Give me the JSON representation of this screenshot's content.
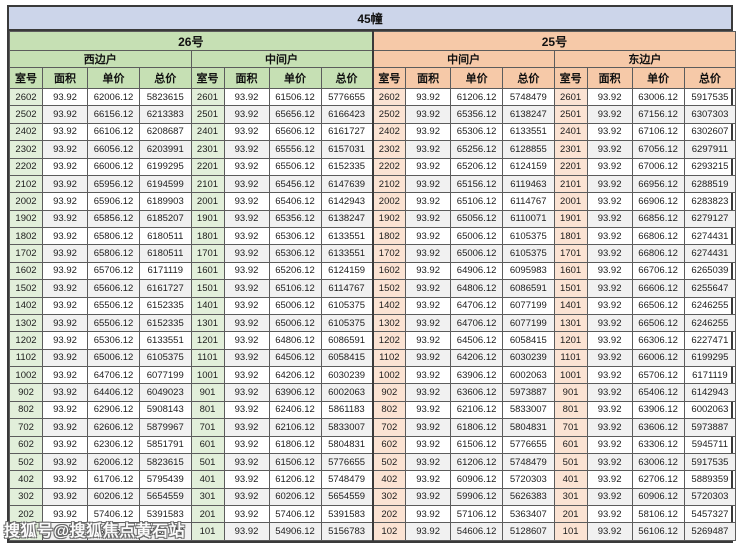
{
  "title": "45幢",
  "watermark": "搜狐号@搜狐焦点黄石站",
  "colors": {
    "title_bar": "#ccd5ea",
    "green_header": "#c6e0b4",
    "green_room_cell": "#e2efda",
    "orange_header": "#f6c9a8",
    "orange_room_cell": "#fbe3d3",
    "row_stripe": "#f1f1f1",
    "border": "#3a3a3a"
  },
  "table": {
    "buildings": [
      {
        "label": "26号",
        "theme": "green",
        "units": [
          "西边户",
          "中间户"
        ]
      },
      {
        "label": "25号",
        "theme": "orange",
        "units": [
          "中间户",
          "东边户"
        ]
      }
    ],
    "column_headers": [
      "室号",
      "面积",
      "单价",
      "总价"
    ],
    "rows": [
      [
        [
          "2602",
          "93.92",
          "62006.12",
          "5823615"
        ],
        [
          "2601",
          "93.92",
          "61506.12",
          "5776655"
        ],
        [
          "2602",
          "93.92",
          "61206.12",
          "5748479"
        ],
        [
          "2601",
          "93.92",
          "63006.12",
          "5917535"
        ]
      ],
      [
        [
          "2502",
          "93.92",
          "66156.12",
          "6213383"
        ],
        [
          "2501",
          "93.92",
          "65656.12",
          "6166423"
        ],
        [
          "2502",
          "93.92",
          "65356.12",
          "6138247"
        ],
        [
          "2501",
          "93.92",
          "67156.12",
          "6307303"
        ]
      ],
      [
        [
          "2402",
          "93.92",
          "66106.12",
          "6208687"
        ],
        [
          "2401",
          "93.92",
          "65606.12",
          "6161727"
        ],
        [
          "2402",
          "93.92",
          "65306.12",
          "6133551"
        ],
        [
          "2401",
          "93.92",
          "67106.12",
          "6302607"
        ]
      ],
      [
        [
          "2302",
          "93.92",
          "66056.12",
          "6203991"
        ],
        [
          "2301",
          "93.92",
          "65556.12",
          "6157031"
        ],
        [
          "2302",
          "93.92",
          "65256.12",
          "6128855"
        ],
        [
          "2301",
          "93.92",
          "67056.12",
          "6297911"
        ]
      ],
      [
        [
          "2202",
          "93.92",
          "66006.12",
          "6199295"
        ],
        [
          "2201",
          "93.92",
          "65506.12",
          "6152335"
        ],
        [
          "2202",
          "93.92",
          "65206.12",
          "6124159"
        ],
        [
          "2201",
          "93.92",
          "67006.12",
          "6293215"
        ]
      ],
      [
        [
          "2102",
          "93.92",
          "65956.12",
          "6194599"
        ],
        [
          "2101",
          "93.92",
          "65456.12",
          "6147639"
        ],
        [
          "2102",
          "93.92",
          "65156.12",
          "6119463"
        ],
        [
          "2101",
          "93.92",
          "66956.12",
          "6288519"
        ]
      ],
      [
        [
          "2002",
          "93.92",
          "65906.12",
          "6189903"
        ],
        [
          "2001",
          "93.92",
          "65406.12",
          "6142943"
        ],
        [
          "2002",
          "93.92",
          "65106.12",
          "6114767"
        ],
        [
          "2001",
          "93.92",
          "66906.12",
          "6283823"
        ]
      ],
      [
        [
          "1902",
          "93.92",
          "65856.12",
          "6185207"
        ],
        [
          "1901",
          "93.92",
          "65356.12",
          "6138247"
        ],
        [
          "1902",
          "93.92",
          "65056.12",
          "6110071"
        ],
        [
          "1901",
          "93.92",
          "66856.12",
          "6279127"
        ]
      ],
      [
        [
          "1802",
          "93.92",
          "65806.12",
          "6180511"
        ],
        [
          "1801",
          "93.92",
          "65306.12",
          "6133551"
        ],
        [
          "1802",
          "93.92",
          "65006.12",
          "6105375"
        ],
        [
          "1801",
          "93.92",
          "66806.12",
          "6274431"
        ]
      ],
      [
        [
          "1702",
          "93.92",
          "65806.12",
          "6180511"
        ],
        [
          "1701",
          "93.92",
          "65306.12",
          "6133551"
        ],
        [
          "1702",
          "93.92",
          "65006.12",
          "6105375"
        ],
        [
          "1701",
          "93.92",
          "66806.12",
          "6274431"
        ]
      ],
      [
        [
          "1602",
          "93.92",
          "65706.12",
          "6171119"
        ],
        [
          "1601",
          "93.92",
          "65206.12",
          "6124159"
        ],
        [
          "1602",
          "93.92",
          "64906.12",
          "6095983"
        ],
        [
          "1601",
          "93.92",
          "66706.12",
          "6265039"
        ]
      ],
      [
        [
          "1502",
          "93.92",
          "65606.12",
          "6161727"
        ],
        [
          "1501",
          "93.92",
          "65106.12",
          "6114767"
        ],
        [
          "1502",
          "93.92",
          "64806.12",
          "6086591"
        ],
        [
          "1501",
          "93.92",
          "66606.12",
          "6255647"
        ]
      ],
      [
        [
          "1402",
          "93.92",
          "65506.12",
          "6152335"
        ],
        [
          "1401",
          "93.92",
          "65006.12",
          "6105375"
        ],
        [
          "1402",
          "93.92",
          "64706.12",
          "6077199"
        ],
        [
          "1401",
          "93.92",
          "66506.12",
          "6246255"
        ]
      ],
      [
        [
          "1302",
          "93.92",
          "65506.12",
          "6152335"
        ],
        [
          "1301",
          "93.92",
          "65006.12",
          "6105375"
        ],
        [
          "1302",
          "93.92",
          "64706.12",
          "6077199"
        ],
        [
          "1301",
          "93.92",
          "66506.12",
          "6246255"
        ]
      ],
      [
        [
          "1202",
          "93.92",
          "65306.12",
          "6133551"
        ],
        [
          "1201",
          "93.92",
          "64806.12",
          "6086591"
        ],
        [
          "1202",
          "93.92",
          "64506.12",
          "6058415"
        ],
        [
          "1201",
          "93.92",
          "66306.12",
          "6227471"
        ]
      ],
      [
        [
          "1102",
          "93.92",
          "65006.12",
          "6105375"
        ],
        [
          "1101",
          "93.92",
          "64506.12",
          "6058415"
        ],
        [
          "1102",
          "93.92",
          "64206.12",
          "6030239"
        ],
        [
          "1101",
          "93.92",
          "66006.12",
          "6199295"
        ]
      ],
      [
        [
          "1002",
          "93.92",
          "64706.12",
          "6077199"
        ],
        [
          "1001",
          "93.92",
          "64206.12",
          "6030239"
        ],
        [
          "1002",
          "93.92",
          "63906.12",
          "6002063"
        ],
        [
          "1001",
          "93.92",
          "65706.12",
          "6171119"
        ]
      ],
      [
        [
          "902",
          "93.92",
          "64406.12",
          "6049023"
        ],
        [
          "901",
          "93.92",
          "63906.12",
          "6002063"
        ],
        [
          "902",
          "93.92",
          "63606.12",
          "5973887"
        ],
        [
          "901",
          "93.92",
          "65406.12",
          "6142943"
        ]
      ],
      [
        [
          "802",
          "93.92",
          "62906.12",
          "5908143"
        ],
        [
          "801",
          "93.92",
          "62406.12",
          "5861183"
        ],
        [
          "802",
          "93.92",
          "62106.12",
          "5833007"
        ],
        [
          "801",
          "93.92",
          "63906.12",
          "6002063"
        ]
      ],
      [
        [
          "702",
          "93.92",
          "62606.12",
          "5879967"
        ],
        [
          "701",
          "93.92",
          "62106.12",
          "5833007"
        ],
        [
          "702",
          "93.92",
          "61806.12",
          "5804831"
        ],
        [
          "701",
          "93.92",
          "63606.12",
          "5973887"
        ]
      ],
      [
        [
          "602",
          "93.92",
          "62306.12",
          "5851791"
        ],
        [
          "601",
          "93.92",
          "61806.12",
          "5804831"
        ],
        [
          "602",
          "93.92",
          "61506.12",
          "5776655"
        ],
        [
          "601",
          "93.92",
          "63306.12",
          "5945711"
        ]
      ],
      [
        [
          "502",
          "93.92",
          "62006.12",
          "5823615"
        ],
        [
          "501",
          "93.92",
          "61506.12",
          "5776655"
        ],
        [
          "502",
          "93.92",
          "61206.12",
          "5748479"
        ],
        [
          "501",
          "93.92",
          "63006.12",
          "5917535"
        ]
      ],
      [
        [
          "402",
          "93.92",
          "61706.12",
          "5795439"
        ],
        [
          "401",
          "93.92",
          "61206.12",
          "5748479"
        ],
        [
          "402",
          "93.92",
          "60906.12",
          "5720303"
        ],
        [
          "401",
          "93.92",
          "62706.12",
          "5889359"
        ]
      ],
      [
        [
          "302",
          "93.92",
          "60206.12",
          "5654559"
        ],
        [
          "301",
          "93.92",
          "60206.12",
          "5654559"
        ],
        [
          "302",
          "93.92",
          "59906.12",
          "5626383"
        ],
        [
          "301",
          "93.92",
          "60906.12",
          "5720303"
        ]
      ],
      [
        [
          "202",
          "93.92",
          "57406.12",
          "5391583"
        ],
        [
          "201",
          "93.92",
          "57406.12",
          "5391583"
        ],
        [
          "202",
          "93.92",
          "57106.12",
          "5363407"
        ],
        [
          "201",
          "93.92",
          "58106.12",
          "5457327"
        ]
      ],
      [
        [
          "102",
          "93.92",
          "55406.12",
          "5203743"
        ],
        [
          "101",
          "93.92",
          "54906.12",
          "5156783"
        ],
        [
          "102",
          "93.92",
          "54606.12",
          "5128607"
        ],
        [
          "101",
          "93.92",
          "56106.12",
          "5269487"
        ]
      ]
    ]
  }
}
